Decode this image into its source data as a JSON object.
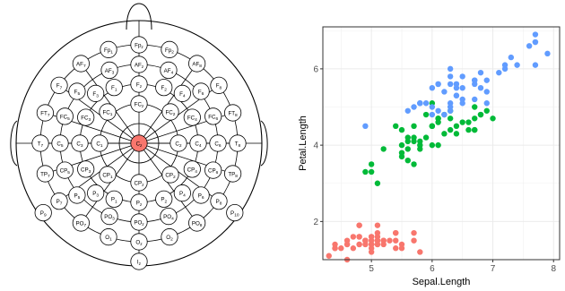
{
  "highlight_color": "#F8766D",
  "chart_data": [
    {
      "type": "diagram",
      "electrodes": [
        {
          "label": "Fp1"
        },
        {
          "label": "Fpz"
        },
        {
          "label": "Fp2"
        },
        {
          "label": "AF7"
        },
        {
          "label": "AF3"
        },
        {
          "label": "AFz"
        },
        {
          "label": "AF4"
        },
        {
          "label": "AF8"
        },
        {
          "label": "F7"
        },
        {
          "label": "F5"
        },
        {
          "label": "F3"
        },
        {
          "label": "F1"
        },
        {
          "label": "Fz"
        },
        {
          "label": "F2"
        },
        {
          "label": "F4"
        },
        {
          "label": "F6"
        },
        {
          "label": "F8"
        },
        {
          "label": "FT7"
        },
        {
          "label": "FC5"
        },
        {
          "label": "FC3"
        },
        {
          "label": "FC1"
        },
        {
          "label": "FCz"
        },
        {
          "label": "FC2"
        },
        {
          "label": "FC4"
        },
        {
          "label": "FC6"
        },
        {
          "label": "FT8"
        },
        {
          "label": "T7"
        },
        {
          "label": "C5"
        },
        {
          "label": "C3"
        },
        {
          "label": "C1"
        },
        {
          "label": "Cz",
          "highlighted": true
        },
        {
          "label": "C2"
        },
        {
          "label": "C4"
        },
        {
          "label": "C6"
        },
        {
          "label": "T8"
        },
        {
          "label": "TP7"
        },
        {
          "label": "CP5"
        },
        {
          "label": "CP3"
        },
        {
          "label": "CP1"
        },
        {
          "label": "CPz"
        },
        {
          "label": "CP2"
        },
        {
          "label": "CP4"
        },
        {
          "label": "CP6"
        },
        {
          "label": "TP8"
        },
        {
          "label": "P9"
        },
        {
          "label": "P7"
        },
        {
          "label": "P5"
        },
        {
          "label": "P3"
        },
        {
          "label": "P1"
        },
        {
          "label": "Pz"
        },
        {
          "label": "P2"
        },
        {
          "label": "P4"
        },
        {
          "label": "P6"
        },
        {
          "label": "P8"
        },
        {
          "label": "P10"
        },
        {
          "label": "PO7"
        },
        {
          "label": "PO3"
        },
        {
          "label": "POz"
        },
        {
          "label": "PO4"
        },
        {
          "label": "PO8"
        },
        {
          "label": "O1"
        },
        {
          "label": "Oz"
        },
        {
          "label": "O2"
        },
        {
          "label": "Iz"
        }
      ]
    },
    {
      "type": "scatter",
      "xlabel": "Sepal.Length",
      "ylabel": "Petal.Length",
      "xlim": [
        4.2,
        8.1
      ],
      "ylim": [
        1.0,
        7.1
      ],
      "xticks": [
        5,
        6,
        7,
        8
      ],
      "yticks": [
        2,
        4,
        6
      ],
      "grid": true,
      "legend": "none",
      "series": [
        {
          "color": "#F8766D",
          "x": [
            4.3,
            4.4,
            4.4,
            4.5,
            4.6,
            4.6,
            4.7,
            4.8,
            4.8,
            4.8,
            4.9,
            4.9,
            5.0,
            5.0,
            5.0,
            5.1,
            5.1,
            5.1,
            5.2,
            5.2,
            5.3,
            5.4,
            5.4,
            5.5,
            5.5,
            5.7,
            5.7,
            5.8,
            4.9,
            5.0,
            5.1,
            5.4,
            4.8,
            5.0,
            5.1,
            4.7,
            4.4,
            4.6,
            5.1,
            5.2,
            4.8,
            5.0,
            5.1,
            4.6,
            5.0,
            5.4,
            4.9,
            4.8,
            5.1,
            5.0
          ],
          "y": [
            1.1,
            1.3,
            1.4,
            1.3,
            1.0,
            1.4,
            1.3,
            1.4,
            1.6,
            1.9,
            1.4,
            1.5,
            1.2,
            1.4,
            1.6,
            1.4,
            1.5,
            1.7,
            1.4,
            1.5,
            1.5,
            1.3,
            1.5,
            1.3,
            1.4,
            1.5,
            1.7,
            1.2,
            1.5,
            1.5,
            1.9,
            1.7,
            1.4,
            1.3,
            1.6,
            1.6,
            1.3,
            1.5,
            1.5,
            1.5,
            1.6,
            1.4,
            1.4,
            1.4,
            1.6,
            1.7,
            1.5,
            1.9,
            1.5,
            1.4
          ]
        },
        {
          "color": "#00BA38",
          "x": [
            4.9,
            5.0,
            5.0,
            5.1,
            5.2,
            5.5,
            5.6,
            5.7,
            5.8,
            5.9,
            6.0,
            6.1,
            6.2,
            6.3,
            6.4,
            6.5,
            6.6,
            6.7,
            6.8,
            6.9,
            7.0,
            5.4,
            5.5,
            5.6,
            5.7,
            5.8,
            5.9,
            6.0,
            6.1,
            6.2,
            6.3,
            6.4,
            6.6,
            6.7,
            6.8,
            5.5,
            5.6,
            5.7,
            5.8,
            6.0,
            6.1,
            6.3,
            6.7,
            5.5,
            5.6,
            5.7,
            6.0,
            6.1,
            6.7,
            6.0
          ],
          "y": [
            3.3,
            3.3,
            3.5,
            3.0,
            3.9,
            3.7,
            3.6,
            3.5,
            3.9,
            4.2,
            4.0,
            4.0,
            4.3,
            4.4,
            4.3,
            4.6,
            4.4,
            4.4,
            4.8,
            4.9,
            4.7,
            4.5,
            4.0,
            4.1,
            4.2,
            4.0,
            4.8,
            4.5,
            4.7,
            4.8,
            4.7,
            4.5,
            4.6,
            4.7,
            4.8,
            3.8,
            3.9,
            4.1,
            4.1,
            5.1,
            4.6,
            4.9,
            5.0,
            4.4,
            4.2,
            4.5,
            4.5,
            4.7,
            4.4,
            4.5
          ]
        },
        {
          "color": "#619CFF",
          "x": [
            4.9,
            5.6,
            5.7,
            5.8,
            5.8,
            5.9,
            6.0,
            6.1,
            6.2,
            6.3,
            6.3,
            6.4,
            6.4,
            6.5,
            6.5,
            6.7,
            6.7,
            6.8,
            6.9,
            7.1,
            7.2,
            7.2,
            7.3,
            7.4,
            7.6,
            7.7,
            7.7,
            7.9,
            5.8,
            6.1,
            6.3,
            6.4,
            6.5,
            6.7,
            6.9,
            7.7,
            6.0,
            6.2,
            6.3,
            6.4,
            6.5,
            6.7,
            6.8,
            7.7,
            6.0,
            6.3,
            6.1,
            6.4,
            6.9,
            6.3
          ],
          "y": [
            4.5,
            4.9,
            5.0,
            5.1,
            5.1,
            5.1,
            4.8,
            4.9,
            4.8,
            5.0,
            4.9,
            5.3,
            5.5,
            5.5,
            5.8,
            5.7,
            5.6,
            5.5,
            5.7,
            5.9,
            6.0,
            6.1,
            6.3,
            6.1,
            6.6,
            6.7,
            6.9,
            6.4,
            5.1,
            5.6,
            5.6,
            5.6,
            5.2,
            5.2,
            5.1,
            6.1,
            5.0,
            5.4,
            6.0,
            5.3,
            5.1,
            5.7,
            5.9,
            6.7,
            5.5,
            5.1,
            5.6,
            5.6,
            5.4,
            5.8
          ]
        }
      ]
    }
  ]
}
